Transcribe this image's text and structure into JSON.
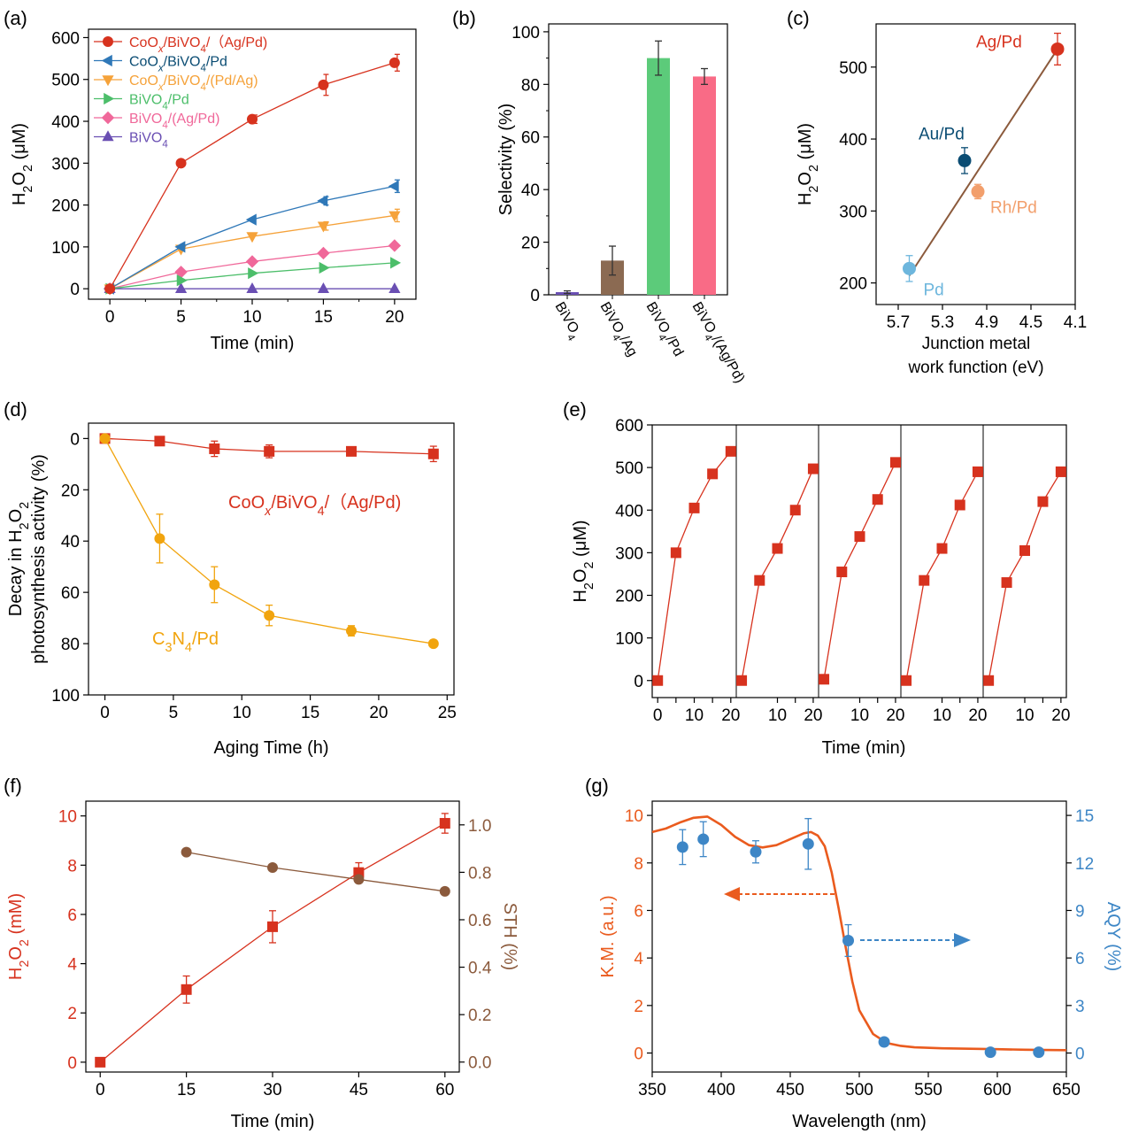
{
  "panels": {
    "a": "(a)",
    "b": "(b)",
    "c": "(c)",
    "d": "(d)",
    "e": "(e)",
    "f": "(f)",
    "g": "(g)"
  },
  "colors": {
    "red": "#d7321e",
    "blue": "#2f78b8",
    "orange": "#f5a23a",
    "green": "#4cbe6a",
    "pink": "#f0689a",
    "purple": "#6a4fb3",
    "brown": "#8b5a3c",
    "darkblue": "#0a4c73",
    "lightorange": "#f29f6c",
    "lightblue": "#6db6dd",
    "gold": "#f1a40e",
    "kmorange": "#ea5b1e",
    "aqyblue": "#3d86c6"
  },
  "chart_data": [
    {
      "id": "a",
      "type": "line",
      "xlabel": "Time (min)",
      "ylabel": "H2O2 (μM)",
      "xlim": [
        -1.5,
        21.5
      ],
      "ylim": [
        -25,
        620
      ],
      "xticks": [
        0,
        5,
        10,
        15,
        20
      ],
      "yticks": [
        0,
        100,
        200,
        300,
        400,
        500,
        600
      ],
      "legend_position": "top-left",
      "series": [
        {
          "name": "CoOx/BiVO4/(Ag/Pd)",
          "color": "#d7321e",
          "marker": "circle",
          "x": [
            0,
            5,
            10,
            15,
            20
          ],
          "y": [
            0,
            300,
            405,
            487,
            540
          ],
          "err": [
            0,
            0,
            10,
            25,
            20
          ]
        },
        {
          "name": "CoOx/BiVO4/Pd",
          "color": "#2f78b8",
          "marker": "triangle-left",
          "x": [
            0,
            5,
            10,
            15,
            20
          ],
          "y": [
            0,
            100,
            165,
            210,
            245
          ],
          "err": [
            0,
            0,
            0,
            10,
            15
          ]
        },
        {
          "name": "CoOx/BiVO4/(Pd/Ag)",
          "color": "#f5a23a",
          "marker": "triangle-down",
          "x": [
            0,
            5,
            10,
            15,
            20
          ],
          "y": [
            0,
            95,
            125,
            150,
            175
          ],
          "err": [
            0,
            0,
            0,
            10,
            15
          ]
        },
        {
          "name": "BiVO4/Pd",
          "color": "#4cbe6a",
          "marker": "triangle-right",
          "x": [
            0,
            5,
            10,
            15,
            20
          ],
          "y": [
            0,
            20,
            37,
            50,
            62
          ],
          "err": [
            0,
            0,
            0,
            0,
            0
          ]
        },
        {
          "name": "BiVO4/(Ag/Pd)",
          "color": "#f0689a",
          "marker": "diamond",
          "x": [
            0,
            5,
            10,
            15,
            20
          ],
          "y": [
            0,
            40,
            65,
            85,
            103
          ],
          "err": [
            0,
            0,
            0,
            0,
            0
          ]
        },
        {
          "name": "BiVO4",
          "color": "#6a4fb3",
          "marker": "triangle-up",
          "x": [
            0,
            5,
            10,
            15,
            20
          ],
          "y": [
            0,
            0,
            0,
            0,
            0
          ],
          "err": [
            0,
            0,
            0,
            0,
            0
          ]
        }
      ],
      "legend_labels": [
        "CoOx/BiVO4/（Ag/Pd)",
        "CoOx/BiVO4/Pd",
        "CoOx/BiVO4/(Pd/Ag)",
        "BiVO4/Pd",
        "BiVO4/(Ag/Pd)",
        "BiVO4"
      ],
      "legend_label_colors": [
        "#d7321e",
        "#0a4c73",
        "#f5a23a",
        "#4cbe6a",
        "#f0689a",
        "#6a4fb3"
      ]
    },
    {
      "id": "b",
      "type": "bar",
      "ylabel": "Selectivity (%)",
      "ylim": [
        0,
        103
      ],
      "yticks": [
        0,
        20,
        40,
        60,
        80,
        100
      ],
      "categories": [
        "BiVO4",
        "BiVO4/Ag",
        "BiVO4/Pd",
        "BiVO4/(Ag/Pd)"
      ],
      "values": [
        1,
        13,
        90,
        83
      ],
      "errors": [
        0.5,
        5.5,
        6.5,
        3
      ],
      "bar_colors": [
        "#6a4fb3",
        "#8b6a52",
        "#5ccb7a",
        "#f96b86"
      ]
    },
    {
      "id": "c",
      "type": "scatter",
      "xlabel_lines": [
        "Junction metal",
        "work function (eV)"
      ],
      "ylabel": "H2O2 (μM)",
      "xlim": [
        5.9,
        4.1
      ],
      "ylim": [
        170,
        560
      ],
      "x_reversed": true,
      "xticks": [
        5.7,
        5.3,
        4.9,
        4.5,
        4.1
      ],
      "yticks": [
        200,
        300,
        400,
        500
      ],
      "points": [
        {
          "label": "Ag/Pd",
          "x": 4.26,
          "y": 525,
          "err": 22,
          "color": "#d7321e"
        },
        {
          "label": "Au/Pd",
          "x": 5.1,
          "y": 370,
          "err": 18,
          "color": "#0a4c73"
        },
        {
          "label": "Rh/Pd",
          "x": 4.98,
          "y": 327,
          "err": 10,
          "color": "#f29f6c"
        },
        {
          "label": "Pd",
          "x": 5.6,
          "y": 220,
          "err": 18,
          "color": "#6db6dd"
        }
      ],
      "fit_line": {
        "x": [
          5.6,
          4.26
        ],
        "y": [
          210,
          525
        ],
        "color": "#8b5a3c"
      }
    },
    {
      "id": "d",
      "type": "line",
      "xlabel": "Aging Time (h)",
      "ylabel_lines": [
        "Decay in H2O2",
        "photosynthesis activity  (%)"
      ],
      "xlim": [
        -1.2,
        25.5
      ],
      "ylim": [
        -6,
        100
      ],
      "y_reversed": true,
      "xticks": [
        0,
        5,
        10,
        15,
        20,
        25
      ],
      "yticks": [
        0,
        20,
        40,
        60,
        80,
        100
      ],
      "series": [
        {
          "name": "CoOx/BiVO4/（Ag/Pd)",
          "color": "#d7321e",
          "marker": "square",
          "x": [
            0,
            4,
            8,
            12,
            18,
            24
          ],
          "y": [
            0,
            1,
            4,
            5,
            5,
            6
          ],
          "err": [
            0,
            1.5,
            3,
            2.5,
            1,
            3
          ]
        },
        {
          "name": "C3N4/Pd",
          "color": "#f1a40e",
          "marker": "circle",
          "x": [
            0,
            4,
            8,
            12,
            18,
            24
          ],
          "y": [
            0,
            39,
            57,
            69,
            75,
            80
          ],
          "err": [
            0,
            9.5,
            7,
            4,
            2,
            0
          ]
        }
      ]
    },
    {
      "id": "e",
      "type": "line",
      "xlabel": "Time (min)",
      "ylabel": "H2O2 (μM)",
      "ylim": [
        -40,
        600
      ],
      "yticks": [
        0,
        100,
        200,
        300,
        400,
        500,
        600
      ],
      "xticks_first": [
        0,
        5,
        10,
        15,
        20
      ],
      "xticks_other": [
        10,
        15,
        20
      ],
      "xtick_labels_first": [
        "0",
        "10",
        "20"
      ],
      "xtick_labels_other": [
        "10",
        "20"
      ],
      "cycles": [
        {
          "x": [
            0,
            5,
            10,
            15,
            20
          ],
          "y": [
            0,
            300,
            405,
            485,
            538
          ]
        },
        {
          "x": [
            0,
            5,
            10,
            15,
            20
          ],
          "y": [
            0,
            235,
            310,
            400,
            497
          ]
        },
        {
          "x": [
            0,
            5,
            10,
            15,
            20
          ],
          "y": [
            3,
            255,
            338,
            425,
            512
          ]
        },
        {
          "x": [
            0,
            5,
            10,
            15,
            20
          ],
          "y": [
            0,
            235,
            310,
            412,
            490
          ]
        },
        {
          "x": [
            0,
            5,
            10,
            15,
            20
          ],
          "y": [
            0,
            230,
            305,
            420,
            490
          ]
        }
      ],
      "color": "#d7321e"
    },
    {
      "id": "f",
      "type": "line",
      "xlabel": "Time (min)",
      "ylabel_left": "H2O2 (mM)",
      "ylabel_right": "STH (%)",
      "xlim": [
        -2.5,
        62.5
      ],
      "ylim_left": [
        -0.4,
        10.6
      ],
      "ylim_right": [
        -0.042,
        1.1
      ],
      "xticks": [
        0,
        15,
        30,
        45,
        60
      ],
      "yticks_left": [
        0,
        2,
        4,
        6,
        8,
        10
      ],
      "yticks_right": [
        0.0,
        0.2,
        0.4,
        0.6,
        0.8,
        1.0
      ],
      "ytick_labels_right": [
        "0.0",
        "0.2",
        "0.4",
        "0.6",
        "0.8",
        "1.0"
      ],
      "series": [
        {
          "name": "H2O2",
          "axis": "left",
          "color": "#d7321e",
          "marker": "square",
          "x": [
            0,
            15,
            30,
            45,
            60
          ],
          "y": [
            0,
            2.95,
            5.5,
            7.7,
            9.7
          ],
          "err": [
            0,
            0.55,
            0.65,
            0.4,
            0.4
          ]
        },
        {
          "name": "STH",
          "axis": "right",
          "color": "#8b5a3c",
          "marker": "circle",
          "x": [
            15,
            30,
            45,
            60
          ],
          "y": [
            0.885,
            0.82,
            0.77,
            0.72
          ],
          "err": [
            0,
            0,
            0,
            0
          ]
        }
      ]
    },
    {
      "id": "g",
      "type": "line",
      "xlabel": "Wavelength (nm)",
      "ylabel_left": "K.M. (a.u.)",
      "ylabel_right": "AQY (%)",
      "xlim": [
        350,
        650
      ],
      "ylim_left": [
        -0.8,
        10.6
      ],
      "ylim_right": [
        -1.2,
        15.9
      ],
      "xticks": [
        350,
        400,
        450,
        500,
        550,
        600,
        650
      ],
      "yticks_left": [
        0,
        2,
        4,
        6,
        8,
        10
      ],
      "yticks_right": [
        0,
        3,
        6,
        9,
        12,
        15
      ],
      "km_curve": {
        "color": "#ea5b1e",
        "x": [
          350,
          360,
          370,
          380,
          390,
          400,
          410,
          420,
          430,
          440,
          450,
          460,
          465,
          470,
          475,
          480,
          485,
          490,
          495,
          500,
          510,
          520,
          530,
          540,
          560,
          580,
          600,
          620,
          650
        ],
        "y": [
          9.3,
          9.45,
          9.7,
          9.9,
          9.95,
          9.6,
          9.1,
          8.75,
          8.65,
          8.75,
          9.0,
          9.25,
          9.3,
          9.15,
          8.7,
          7.6,
          6.1,
          4.5,
          3.0,
          1.8,
          0.8,
          0.42,
          0.3,
          0.24,
          0.2,
          0.18,
          0.16,
          0.14,
          0.12
        ]
      },
      "aqy_points": {
        "color": "#3d86c6",
        "x": [
          372,
          387,
          425,
          463,
          492,
          518,
          595,
          630
        ],
        "y": [
          13.0,
          13.5,
          12.7,
          13.2,
          7.1,
          0.7,
          0.05,
          0.05
        ],
        "err": [
          1.1,
          1.1,
          0.7,
          1.6,
          1.0,
          0,
          0,
          0
        ]
      }
    }
  ]
}
